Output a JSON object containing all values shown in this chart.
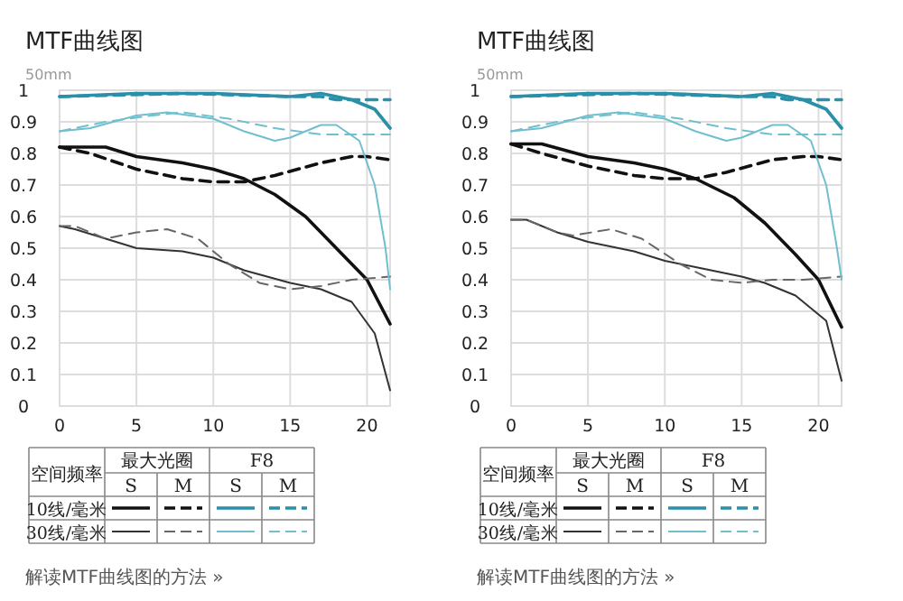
{
  "chart_data": [
    {
      "type": "line",
      "title": "MTF曲线图",
      "subtitle": "50mm",
      "xlim": [
        0,
        21.5
      ],
      "xticks": [
        0,
        5,
        10,
        15,
        20
      ],
      "ylim": [
        0,
        1
      ],
      "yticks": [
        0,
        0.1,
        0.2,
        0.3,
        0.4,
        0.5,
        0.6,
        0.7,
        0.8,
        0.9,
        1
      ],
      "grid": true,
      "annotations": [
        "空间频率",
        "最大光圈",
        "F8",
        "S",
        "M",
        "S",
        "M",
        "10线/毫米",
        "30线/毫米",
        "解读MTF曲线图的方法 »"
      ],
      "series": [
        {
          "color": "#111111",
          "line_style": "solid",
          "x": [
            0,
            3,
            5,
            8,
            10,
            12,
            14,
            16,
            18,
            20,
            21.5
          ],
          "values": [
            0.82,
            0.82,
            0.79,
            0.77,
            0.75,
            0.72,
            0.67,
            0.6,
            0.5,
            0.4,
            0.26
          ]
        },
        {
          "color": "#111111",
          "line_style": "dashed",
          "x": [
            0,
            2,
            5,
            8,
            10,
            12,
            14,
            17,
            19,
            20,
            21.5
          ],
          "values": [
            0.82,
            0.8,
            0.75,
            0.72,
            0.71,
            0.71,
            0.73,
            0.77,
            0.79,
            0.79,
            0.78
          ]
        },
        {
          "color": "#2a8fa8",
          "line_style": "solid",
          "x": [
            0,
            5,
            10,
            15,
            17,
            19,
            20.5,
            21.5
          ],
          "values": [
            0.98,
            0.99,
            0.99,
            0.98,
            0.99,
            0.97,
            0.94,
            0.88
          ]
        },
        {
          "color": "#2a8fa8",
          "line_style": "dashed",
          "x": [
            0,
            8,
            15,
            17,
            18,
            21.5
          ],
          "values": [
            0.98,
            0.99,
            0.98,
            0.98,
            0.97,
            0.97
          ]
        },
        {
          "color": "#333333",
          "line_style": "solid",
          "x": [
            0,
            1,
            3,
            5,
            8,
            10,
            12,
            15,
            17,
            19,
            20.5,
            21.5
          ],
          "values": [
            0.57,
            0.56,
            0.53,
            0.5,
            0.49,
            0.47,
            0.43,
            0.39,
            0.37,
            0.33,
            0.23,
            0.05
          ]
        },
        {
          "color": "#666666",
          "line_style": "dashed",
          "x": [
            0,
            1,
            3,
            5,
            7,
            9,
            11,
            13,
            15,
            17,
            19,
            21.5
          ],
          "values": [
            0.57,
            0.57,
            0.53,
            0.55,
            0.56,
            0.53,
            0.45,
            0.39,
            0.37,
            0.38,
            0.4,
            0.41
          ]
        },
        {
          "color": "#6fbfcf",
          "line_style": "solid",
          "x": [
            0,
            2,
            5,
            7,
            10,
            12,
            14,
            15,
            17,
            18,
            19.5,
            20.5,
            21.2,
            21.5
          ],
          "values": [
            0.87,
            0.88,
            0.92,
            0.93,
            0.91,
            0.87,
            0.84,
            0.85,
            0.89,
            0.89,
            0.84,
            0.7,
            0.5,
            0.37
          ]
        },
        {
          "color": "#6fbfcf",
          "line_style": "dashed",
          "x": [
            0,
            3,
            6,
            8,
            11,
            14,
            17,
            19,
            21.5
          ],
          "values": [
            0.87,
            0.9,
            0.92,
            0.93,
            0.91,
            0.88,
            0.86,
            0.86,
            0.86
          ]
        }
      ]
    },
    {
      "type": "line",
      "title": "MTF曲线图",
      "subtitle": "50mm",
      "xlim": [
        0,
        21.5
      ],
      "xticks": [
        0,
        5,
        10,
        15,
        20
      ],
      "ylim": [
        0,
        1
      ],
      "yticks": [
        0,
        0.1,
        0.2,
        0.3,
        0.4,
        0.5,
        0.6,
        0.7,
        0.8,
        0.9,
        1
      ],
      "grid": true,
      "annotations": [
        "空间频率",
        "最大光圈",
        "F8",
        "S",
        "M",
        "S",
        "M",
        "10线/毫米",
        "30线/毫米",
        "解读MTF曲线图的方法 »"
      ],
      "series": [
        {
          "color": "#111111",
          "line_style": "solid",
          "x": [
            0,
            2,
            5,
            8,
            10,
            12,
            14.5,
            16.5,
            18.5,
            20,
            21.5
          ],
          "values": [
            0.83,
            0.83,
            0.79,
            0.77,
            0.75,
            0.72,
            0.66,
            0.58,
            0.48,
            0.4,
            0.25
          ]
        },
        {
          "color": "#111111",
          "line_style": "dashed",
          "x": [
            0,
            2,
            5,
            8,
            10,
            12,
            14,
            17,
            19,
            20,
            21.5
          ],
          "values": [
            0.83,
            0.8,
            0.76,
            0.73,
            0.72,
            0.72,
            0.74,
            0.78,
            0.79,
            0.79,
            0.78
          ]
        },
        {
          "color": "#2a8fa8",
          "line_style": "solid",
          "x": [
            0,
            5,
            10,
            15,
            17,
            19,
            20.5,
            21.5
          ],
          "values": [
            0.98,
            0.99,
            0.99,
            0.98,
            0.99,
            0.97,
            0.94,
            0.88
          ]
        },
        {
          "color": "#2a8fa8",
          "line_style": "dashed",
          "x": [
            0,
            8,
            15,
            17,
            18,
            21.5
          ],
          "values": [
            0.98,
            0.99,
            0.98,
            0.98,
            0.97,
            0.97
          ]
        },
        {
          "color": "#333333",
          "line_style": "solid",
          "x": [
            0,
            1,
            3,
            5,
            8,
            10,
            12,
            15,
            16.5,
            18.5,
            20.5,
            21.5
          ],
          "values": [
            0.59,
            0.59,
            0.55,
            0.52,
            0.49,
            0.46,
            0.44,
            0.41,
            0.39,
            0.35,
            0.27,
            0.08
          ]
        },
        {
          "color": "#666666",
          "line_style": "dashed",
          "x": [
            0,
            1,
            3,
            4,
            6.5,
            8.5,
            11,
            13,
            15,
            17,
            19,
            21.5
          ],
          "values": [
            0.59,
            0.59,
            0.55,
            0.54,
            0.56,
            0.53,
            0.45,
            0.4,
            0.39,
            0.4,
            0.4,
            0.41
          ]
        },
        {
          "color": "#6fbfcf",
          "line_style": "solid",
          "x": [
            0,
            2,
            5,
            7,
            10,
            12,
            14,
            15,
            17,
            18,
            19.5,
            20.5,
            21.2,
            21.5
          ],
          "values": [
            0.87,
            0.88,
            0.92,
            0.93,
            0.91,
            0.87,
            0.84,
            0.85,
            0.89,
            0.89,
            0.84,
            0.7,
            0.5,
            0.4
          ]
        },
        {
          "color": "#6fbfcf",
          "line_style": "dashed",
          "x": [
            0,
            3,
            6,
            8,
            11,
            14,
            17,
            19,
            21.5
          ],
          "values": [
            0.87,
            0.9,
            0.92,
            0.93,
            0.91,
            0.88,
            0.86,
            0.86,
            0.86
          ]
        }
      ]
    }
  ]
}
